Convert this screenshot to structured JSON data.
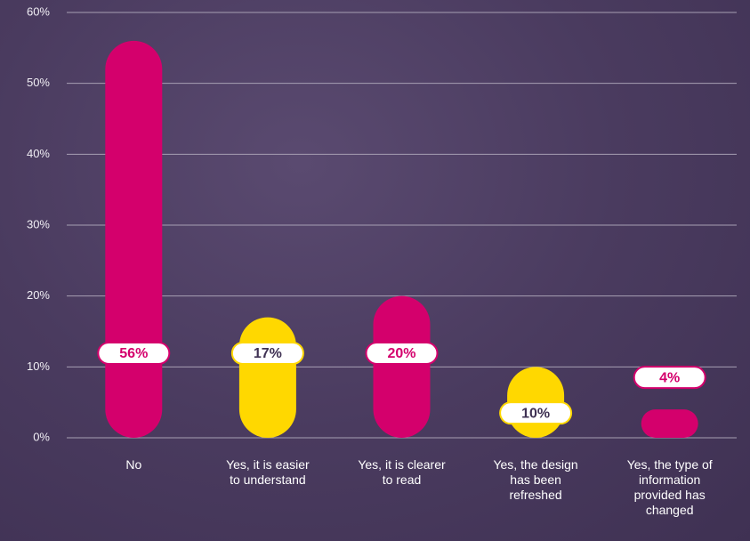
{
  "chart_data": {
    "type": "bar",
    "categories": [
      "No",
      "Yes, it is easier to understand",
      "Yes, it is clearer to read",
      "Yes, the design has been refreshed",
      "Yes, the type of information provided has changed"
    ],
    "values": [
      56,
      17,
      20,
      10,
      4
    ],
    "value_labels": [
      "56%",
      "17%",
      "20%",
      "10%",
      "4%"
    ],
    "colors": [
      "#d4006c",
      "#ffd800",
      "#d4006c",
      "#ffd800",
      "#d4006c"
    ],
    "ylim": [
      0,
      60
    ],
    "yticks": [
      {
        "value": 0,
        "label": "0%"
      },
      {
        "value": 10,
        "label": "10%"
      },
      {
        "value": 20,
        "label": "20%"
      },
      {
        "value": 30,
        "label": "30%"
      },
      {
        "value": 40,
        "label": "40%"
      },
      {
        "value": 50,
        "label": "50%"
      },
      {
        "value": 60,
        "label": "60%"
      }
    ],
    "grid": true
  }
}
